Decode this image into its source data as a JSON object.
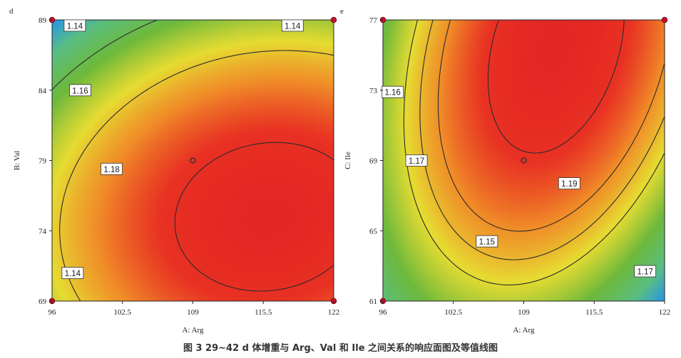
{
  "caption": "图 3  29~42 d 体增重与 Arg、Val 和 Ile 之间关系的响应面图及等值线图",
  "chart_data": [
    {
      "panel": "d",
      "type": "heatmap",
      "xlabel": "A: Arg",
      "ylabel": "B: Val",
      "xlim": [
        96,
        122
      ],
      "ylim": [
        69,
        89
      ],
      "xticks": [
        "96",
        "102.5",
        "109",
        "115.5",
        "122"
      ],
      "yticks": [
        "69",
        "74",
        "79",
        "84",
        "89"
      ],
      "surface": {
        "peak_x": 116,
        "peak_y": 75,
        "peak_value": 1.185,
        "ax": 6.8e-05,
        "bx": -8e-06,
        "ay": 0.00018,
        "cxy": -1.8e-05
      },
      "contour_levels": [
        1.14,
        1.16,
        1.18
      ],
      "contour_labels": [
        {
          "text": "1.14",
          "x": 98.1,
          "y": 88.6
        },
        {
          "text": "1.14",
          "x": 118.2,
          "y": 88.6
        },
        {
          "text": "1.16",
          "x": 98.6,
          "y": 84.0
        },
        {
          "text": "1.18",
          "x": 101.5,
          "y": 78.4
        },
        {
          "text": "1.14",
          "x": 97.9,
          "y": 71.0
        }
      ],
      "design_points": [
        {
          "x": 109,
          "y": 79,
          "type": "center"
        },
        {
          "x": 96,
          "y": 89,
          "type": "corner"
        },
        {
          "x": 122,
          "y": 89,
          "type": "corner"
        },
        {
          "x": 96,
          "y": 69,
          "type": "corner"
        },
        {
          "x": 122,
          "y": 69,
          "type": "corner"
        }
      ]
    },
    {
      "panel": "e",
      "type": "heatmap",
      "xlabel": "A: Arg",
      "ylabel": "C: Ile",
      "xlim": [
        96,
        122
      ],
      "ylim": [
        61,
        77
      ],
      "xticks": [
        "96",
        "102.5",
        "109",
        "115.5",
        "122"
      ],
      "yticks": [
        "61",
        "65",
        "69",
        "73",
        "77"
      ],
      "surface": {
        "peak_x": 112,
        "peak_y": 75.5,
        "peak_value": 1.2,
        "ax": 0.00028,
        "bx": -5e-06,
        "ay": 0.0003,
        "cxy": -0.00018
      },
      "contour_levels": [
        1.15,
        1.16,
        1.17,
        1.19
      ],
      "contour_labels": [
        {
          "text": "1.16",
          "x": 96.9,
          "y": 72.9
        },
        {
          "text": "1.17",
          "x": 99.1,
          "y": 69.0
        },
        {
          "text": "1.19",
          "x": 113.2,
          "y": 67.7
        },
        {
          "text": "1.15",
          "x": 105.6,
          "y": 64.4
        },
        {
          "text": "1.17",
          "x": 120.2,
          "y": 62.7
        }
      ],
      "design_points": [
        {
          "x": 109,
          "y": 69,
          "type": "center"
        },
        {
          "x": 96,
          "y": 77,
          "type": "corner"
        },
        {
          "x": 122,
          "y": 77,
          "type": "corner"
        },
        {
          "x": 96,
          "y": 61,
          "type": "corner"
        }
      ]
    }
  ]
}
